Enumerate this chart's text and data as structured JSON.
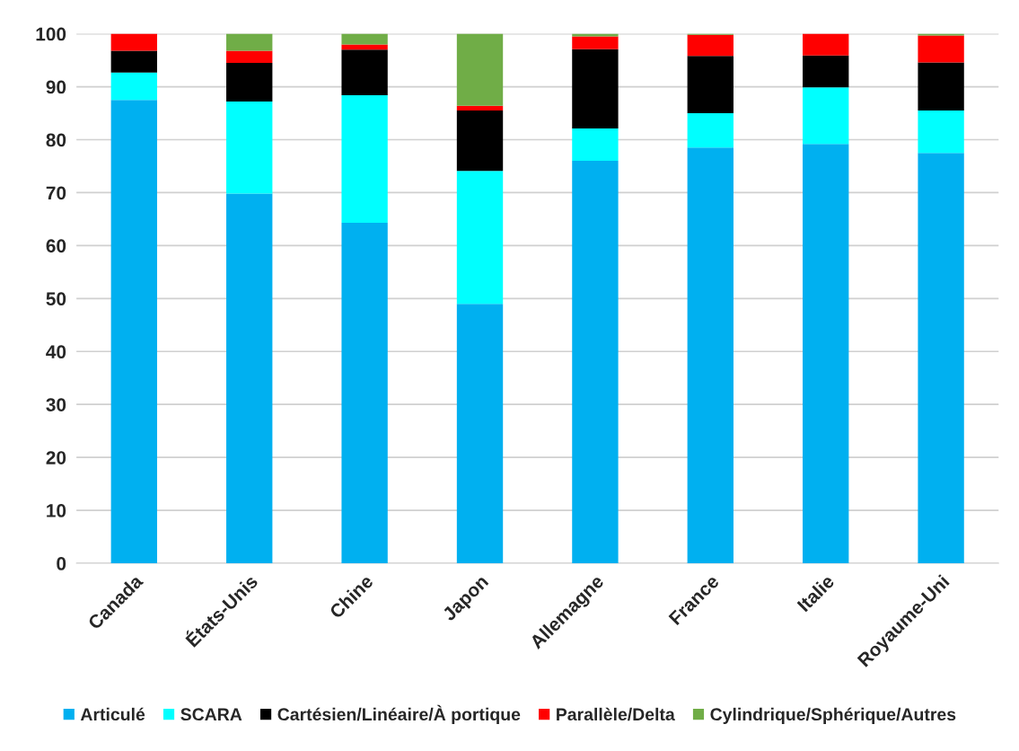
{
  "chart_data": {
    "type": "bar",
    "stacked": true,
    "categories": [
      "Canada",
      "États-Unis",
      "Chine",
      "Japon",
      "Allemagne",
      "France",
      "Italie",
      "Royaume-Uni"
    ],
    "series": [
      {
        "name": "Articulé",
        "color": "#00b0f0",
        "values": [
          87.5,
          69.8,
          64.3,
          49.0,
          76.0,
          78.5,
          79.2,
          77.5
        ]
      },
      {
        "name": "SCARA",
        "color": "#00ffff",
        "values": [
          5.2,
          17.4,
          24.1,
          25.1,
          6.1,
          6.5,
          10.7,
          8.0
        ]
      },
      {
        "name": "Cartésien/Linéaire/À portique",
        "color": "#000000",
        "values": [
          4.1,
          7.3,
          8.6,
          11.4,
          15.0,
          10.8,
          6.0,
          9.1
        ]
      },
      {
        "name": "Parallèle/Delta",
        "color": "#ff0000",
        "values": [
          3.2,
          2.3,
          1.0,
          0.9,
          2.4,
          4.0,
          4.1,
          5.1
        ]
      },
      {
        "name": "Cylindrique/Sphérique/Autres",
        "color": "#70ad47",
        "values": [
          null,
          3.2,
          2.0,
          13.6,
          0.5,
          0.2,
          null,
          0.3
        ]
      }
    ],
    "ylim": [
      0,
      100
    ],
    "yticks": [
      0,
      10,
      20,
      30,
      40,
      50,
      60,
      70,
      80,
      90,
      100
    ],
    "grid": "y",
    "legend": "bottom"
  }
}
